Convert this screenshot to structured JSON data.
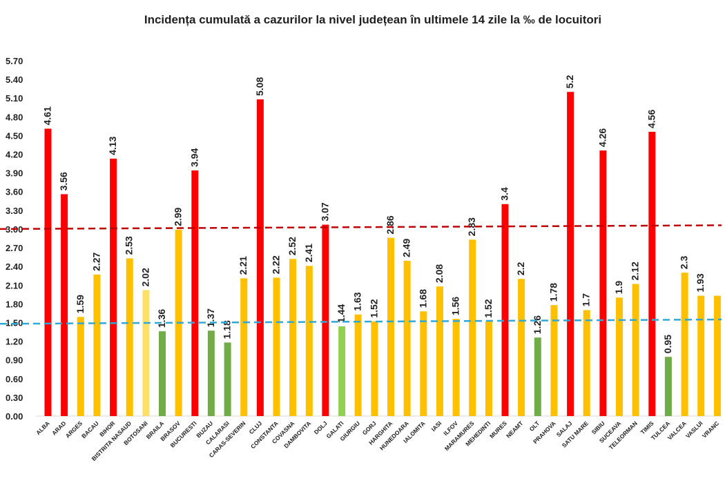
{
  "chart_data": {
    "type": "bar",
    "title": "Incidența cumulată a cazurilor la nivel județean în ultimele 14 zile la ‰ de locuitori",
    "xlabel": "",
    "ylabel": "",
    "ylim": [
      0,
      5.7
    ],
    "yticks": [
      "0.00",
      "0.30",
      "0.60",
      "0.90",
      "1.20",
      "1.50",
      "1.80",
      "2.10",
      "2.40",
      "2.70",
      "3.00",
      "3.30",
      "3.60",
      "3.90",
      "4.20",
      "4.50",
      "4.80",
      "5.10",
      "5.40",
      "5.70"
    ],
    "grid": false,
    "legend": "none",
    "categories": [
      "ALBA",
      "ARAD",
      "ARGES",
      "BACAU",
      "BIHOR",
      "BISTRITA NASAUD",
      "BOTOSANI",
      "BRAILA",
      "BRASOV",
      "BUCURESTI",
      "BUZAU",
      "CALARASI",
      "CARAS-SEVERIN",
      "CLUJ",
      "CONSTANTA",
      "COVASNA",
      "DAMBOVITA",
      "DOLJ",
      "GALATI",
      "GIURGIU",
      "GORJ",
      "HARGHITA",
      "HUNEDOARA",
      "IALOMITA",
      "IASI",
      "ILFOV",
      "MARAMURES",
      "MEHEDINTI",
      "MURES",
      "NEAMT",
      "OLT",
      "PRAHOVA",
      "SALAJ",
      "SATU MARE",
      "SIBIU",
      "SUCEAVA",
      "TELEORMAN",
      "TIMIS",
      "TULCEA",
      "VALCEA",
      "VASLUI",
      "VRANCEA"
    ],
    "category_labels": [
      "ALBA",
      "ARAD",
      "ARGES",
      "BACAU",
      "BIHOR",
      "BISTRITA NASAUD",
      "BOTOSANI",
      "BRAILA",
      "BRASOV",
      "BUCURESTI",
      "BUZAU",
      "CALARASI",
      "CARAS-SEVERIN",
      "CLUJ",
      "CONSTANTA",
      "COVASNA",
      "DAMBOVITA",
      "DOLJ",
      "GALATI",
      "GIURGIU",
      "GORJ",
      "HARGHITA",
      "HUNEDOARA",
      "IALOMITA",
      "IASI",
      "ILFOV",
      "MARAMURES",
      "MEHEDINTI",
      "MURES",
      "NEAMT",
      "OLT",
      "PRAHOVA",
      "SALAJ",
      "SATU MARE",
      "SIBIU",
      "SUCEAVA",
      "TELEORMAN",
      "TIMIS",
      "TULCEA",
      "VALCEA",
      "VASLUI",
      "VRANC"
    ],
    "values": [
      4.61,
      3.56,
      1.59,
      2.27,
      4.13,
      2.53,
      2.02,
      1.36,
      2.99,
      3.94,
      1.37,
      1.18,
      2.21,
      5.08,
      2.22,
      2.52,
      2.41,
      3.07,
      1.44,
      1.63,
      1.52,
      2.86,
      2.49,
      1.68,
      2.08,
      1.56,
      2.83,
      1.52,
      3.4,
      2.2,
      1.26,
      1.78,
      5.2,
      1.7,
      4.26,
      1.9,
      2.12,
      4.56,
      0.95,
      2.3,
      1.93,
      1.93
    ],
    "value_labels": [
      "4.61",
      "3.56",
      "1.59",
      "2.27",
      "4.13",
      "2.53",
      "2.02",
      "1.36",
      "2.99",
      "3.94",
      "1.37",
      "1.18",
      "2.21",
      "5.08",
      "2.22",
      "2.52",
      "2.41",
      "3.07",
      "1.44",
      "1.63",
      "1.52",
      "2.86",
      "2.49",
      "1.68",
      "2.08",
      "1.56",
      "2.83",
      "1.52",
      "3.4",
      "2.2",
      "1.26",
      "1.78",
      "5.2",
      "1.7",
      "4.26",
      "1.9",
      "2.12",
      "4.56",
      "0.95",
      "2.3",
      "1.93",
      ""
    ],
    "colors": [
      "#ff0000",
      "#ff0000",
      "#ffc000",
      "#ffc000",
      "#ff0000",
      "#ffc000",
      "#ffe066",
      "#70ad47",
      "#ffc000",
      "#ff0000",
      "#70ad47",
      "#70ad47",
      "#ffc000",
      "#ff0000",
      "#ffc000",
      "#ffc000",
      "#ffc000",
      "#ff0000",
      "#92d050",
      "#ffc000",
      "#ffc000",
      "#ffc000",
      "#ffc000",
      "#ffc000",
      "#ffc000",
      "#ffc000",
      "#ffc000",
      "#ffc000",
      "#ff0000",
      "#ffc000",
      "#70ad47",
      "#ffc000",
      "#ff0000",
      "#ffc000",
      "#ff0000",
      "#ffc000",
      "#ffc000",
      "#ff0000",
      "#70ad47",
      "#ffc000",
      "#ffc000",
      "#ffc000"
    ],
    "threshold_lines": [
      {
        "start": 3.0,
        "end": 3.06,
        "color": "#c00000"
      },
      {
        "start": 1.48,
        "end": 1.55,
        "color": "#2ea8d8"
      }
    ]
  }
}
